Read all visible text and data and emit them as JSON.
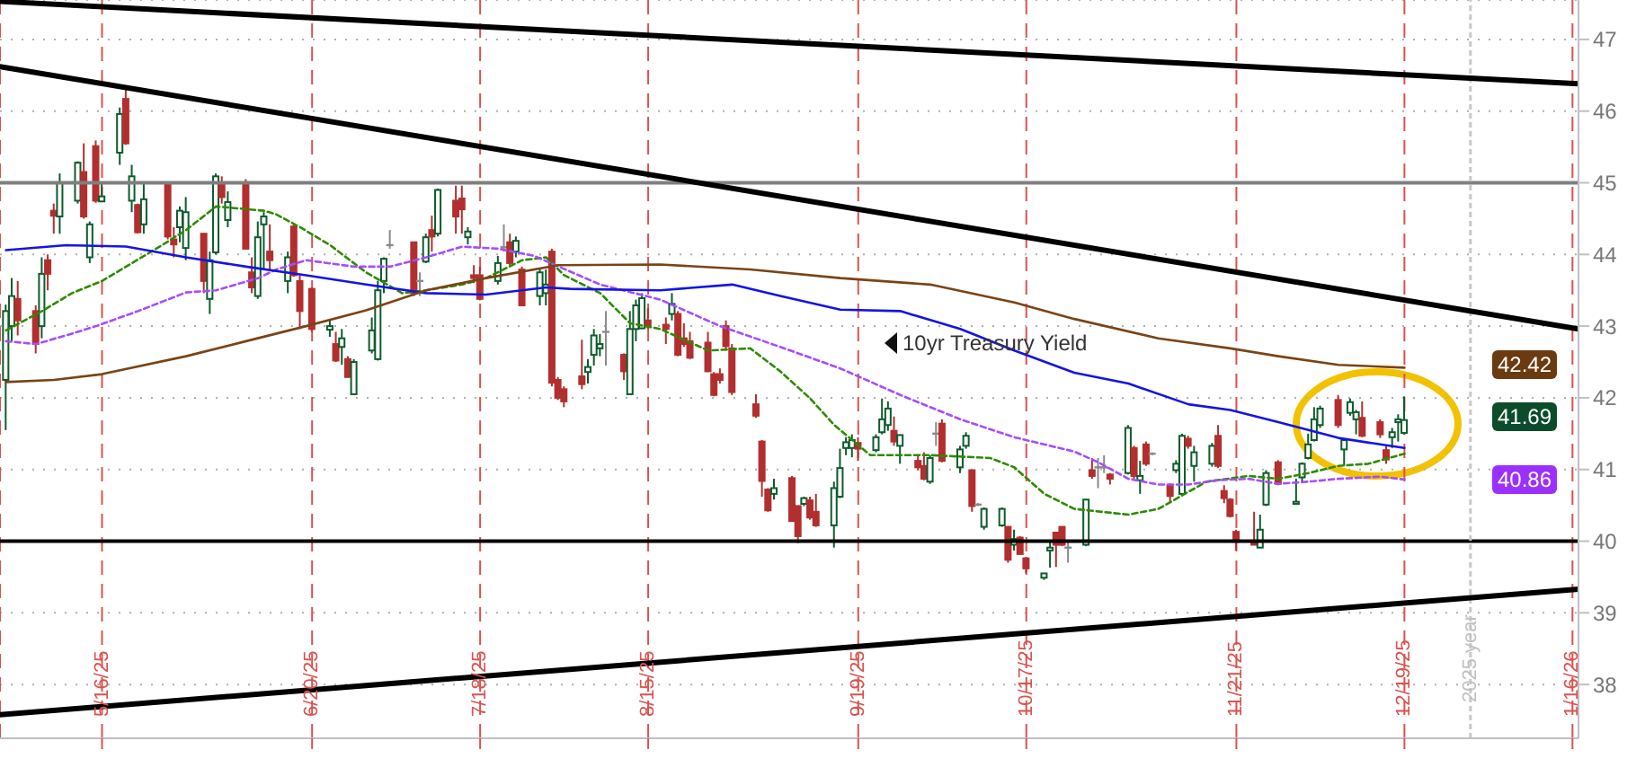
{
  "chart_data": {
    "type": "candlestick",
    "x": [
      "2025-04-30",
      "2025-05-01",
      "2025-05-02",
      "2025-05-05",
      "2025-05-06",
      "2025-05-07",
      "2025-05-08",
      "2025-05-09",
      "2025-05-12",
      "2025-05-13",
      "2025-05-14",
      "2025-05-15",
      "2025-05-16",
      "2025-05-19",
      "2025-05-20",
      "2025-05-21",
      "2025-05-22",
      "2025-05-23",
      "2025-05-27",
      "2025-05-28",
      "2025-05-29",
      "2025-05-30",
      "2025-06-02",
      "2025-06-03",
      "2025-06-04",
      "2025-06-05",
      "2025-06-06",
      "2025-06-09",
      "2025-06-10",
      "2025-06-11",
      "2025-06-12",
      "2025-06-13",
      "2025-06-16",
      "2025-06-17",
      "2025-06-18",
      "2025-06-20",
      "2025-06-23",
      "2025-06-24",
      "2025-06-25",
      "2025-06-26",
      "2025-06-27",
      "2025-06-30",
      "2025-07-01",
      "2025-07-02",
      "2025-07-03",
      "2025-07-07",
      "2025-07-08",
      "2025-07-09",
      "2025-07-10",
      "2025-07-11",
      "2025-07-14",
      "2025-07-15",
      "2025-07-16",
      "2025-07-17",
      "2025-07-18",
      "2025-07-21",
      "2025-07-22",
      "2025-07-23",
      "2025-07-24",
      "2025-07-25",
      "2025-07-28",
      "2025-07-29",
      "2025-07-30",
      "2025-07-31",
      "2025-08-01",
      "2025-08-04",
      "2025-08-05",
      "2025-08-06",
      "2025-08-07",
      "2025-08-08",
      "2025-08-11",
      "2025-08-12",
      "2025-08-13",
      "2025-08-14",
      "2025-08-15",
      "2025-08-18",
      "2025-08-19",
      "2025-08-20",
      "2025-08-21",
      "2025-08-22",
      "2025-08-25",
      "2025-08-26",
      "2025-08-27",
      "2025-08-28",
      "2025-08-29",
      "2025-09-02",
      "2025-09-03",
      "2025-09-04",
      "2025-09-05",
      "2025-09-08",
      "2025-09-09",
      "2025-09-10",
      "2025-09-11",
      "2025-09-12",
      "2025-09-15",
      "2025-09-16",
      "2025-09-17",
      "2025-09-18",
      "2025-09-19",
      "2025-09-22",
      "2025-09-23",
      "2025-09-24",
      "2025-09-25",
      "2025-09-26",
      "2025-09-29",
      "2025-09-30",
      "2025-10-01",
      "2025-10-02",
      "2025-10-03",
      "2025-10-06",
      "2025-10-07",
      "2025-10-08",
      "2025-10-09",
      "2025-10-10",
      "2025-10-13",
      "2025-10-14",
      "2025-10-15",
      "2025-10-16",
      "2025-10-17",
      "2025-10-20",
      "2025-10-21",
      "2025-10-22",
      "2025-10-23",
      "2025-10-24",
      "2025-10-27",
      "2025-10-28",
      "2025-10-29",
      "2025-10-30",
      "2025-10-31",
      "2025-11-03",
      "2025-11-04",
      "2025-11-05",
      "2025-11-06",
      "2025-11-07",
      "2025-11-10",
      "2025-11-11",
      "2025-11-12",
      "2025-11-13",
      "2025-11-14",
      "2025-11-17",
      "2025-11-18",
      "2025-11-19",
      "2025-11-20",
      "2025-11-21",
      "2025-11-24",
      "2025-11-25",
      "2025-11-26",
      "2025-11-28",
      "2025-12-01",
      "2025-12-02",
      "2025-12-03",
      "2025-12-04",
      "2025-12-05",
      "2025-12-08",
      "2025-12-09",
      "2025-12-10",
      "2025-12-11",
      "2025-12-12",
      "2025-12-15",
      "2025-12-16",
      "2025-12-17",
      "2025-12-18",
      "2025-12-19"
    ],
    "ohlc": [
      [
        42.25,
        43.3,
        41.55,
        43.21
      ],
      [
        43.0,
        43.67,
        42.79,
        43.42
      ],
      [
        43.38,
        43.63,
        42.87,
        43.08
      ],
      [
        43.21,
        43.29,
        42.62,
        42.75
      ],
      [
        43.0,
        43.96,
        42.83,
        43.73
      ],
      [
        43.92,
        44.0,
        43.5,
        43.73
      ],
      [
        44.61,
        44.71,
        44.29,
        44.54
      ],
      [
        44.53,
        45.13,
        44.29,
        45.0
      ],
      [
        44.75,
        45.3,
        44.71,
        45.28
      ],
      [
        45.15,
        45.55,
        44.5,
        44.53
      ],
      [
        43.96,
        44.46,
        43.88,
        44.42
      ],
      [
        45.51,
        45.59,
        44.72,
        44.75
      ],
      [
        44.74,
        45.0,
        44.73,
        44.81
      ],
      [
        45.42,
        46.05,
        45.25,
        45.96
      ],
      [
        46.17,
        46.3,
        45.53,
        45.55
      ],
      [
        44.75,
        45.25,
        44.59,
        45.09
      ],
      [
        44.69,
        44.71,
        44.29,
        44.31
      ],
      [
        44.42,
        45.0,
        44.29,
        44.77
      ],
      [
        44.98,
        45.0,
        44.21,
        44.25
      ],
      [
        44.21,
        44.38,
        43.96,
        44.14
      ],
      [
        44.38,
        44.67,
        44.17,
        44.61
      ],
      [
        44.09,
        44.8,
        43.92,
        44.59
      ],
      [
        44.29,
        44.29,
        43.46,
        43.63
      ],
      [
        43.38,
        44.04,
        43.17,
        43.92
      ],
      [
        44.03,
        45.13,
        44.0,
        45.09
      ],
      [
        45.0,
        45.09,
        44.71,
        44.8
      ],
      [
        44.48,
        44.88,
        44.38,
        44.73
      ],
      [
        45.0,
        45.05,
        44.08,
        44.08
      ],
      [
        43.75,
        43.96,
        43.46,
        43.54
      ],
      [
        43.42,
        44.46,
        43.38,
        44.24
      ],
      [
        44.42,
        44.59,
        43.79,
        44.53
      ],
      [
        44.04,
        44.42,
        43.79,
        43.92
      ],
      [
        43.63,
        44.04,
        43.46,
        43.96
      ],
      [
        44.39,
        44.42,
        43.69,
        43.71
      ],
      [
        43.63,
        43.71,
        42.96,
        43.21
      ],
      [
        43.52,
        43.54,
        42.92,
        42.96
      ],
      [
        42.95,
        43.1,
        42.85,
        43.0
      ],
      [
        42.75,
        42.92,
        42.5,
        42.52
      ],
      [
        42.71,
        42.96,
        42.46,
        42.83
      ],
      [
        42.54,
        42.58,
        42.29,
        42.29
      ],
      [
        42.05,
        42.54,
        42.04,
        42.5
      ],
      [
        42.66,
        43.12,
        42.62,
        42.94
      ],
      [
        42.54,
        43.63,
        42.52,
        43.5
      ],
      [
        43.63,
        43.96,
        43.46,
        43.94
      ],
      [
        44.13,
        44.34,
        44.08,
        44.13
      ],
      [
        44.17,
        44.17,
        43.42,
        43.46
      ],
      [
        43.63,
        43.75,
        43.42,
        43.63
      ],
      [
        43.9,
        44.29,
        43.88,
        44.24
      ],
      [
        44.34,
        44.54,
        44.04,
        44.25
      ],
      [
        44.29,
        44.92,
        44.25,
        44.9
      ],
      [
        44.75,
        44.96,
        44.29,
        44.53
      ],
      [
        44.78,
        44.96,
        44.29,
        44.63
      ],
      [
        44.24,
        44.38,
        44.14,
        44.32
      ],
      [
        43.71,
        43.85,
        43.6,
        43.67
      ],
      [
        43.71,
        43.83,
        43.36,
        43.38
      ],
      [
        43.63,
        43.98,
        43.58,
        43.88
      ],
      [
        44.1,
        44.42,
        44.04,
        44.1
      ],
      [
        44.17,
        44.29,
        43.83,
        43.88
      ],
      [
        44.04,
        44.25,
        43.96,
        44.19
      ],
      [
        43.79,
        43.83,
        43.29,
        43.29
      ],
      [
        43.42,
        43.79,
        43.29,
        43.75
      ],
      [
        43.46,
        43.79,
        43.29,
        43.58
      ],
      [
        44.04,
        44.08,
        42.16,
        42.21
      ],
      [
        42.25,
        42.29,
        41.97,
        42.0
      ],
      [
        42.12,
        42.16,
        41.87,
        41.95
      ],
      [
        42.3,
        42.81,
        42.12,
        42.19
      ],
      [
        42.36,
        42.54,
        42.2,
        42.43
      ],
      [
        42.6,
        42.96,
        42.45,
        42.87
      ],
      [
        42.69,
        42.89,
        42.58,
        42.75
      ],
      [
        42.92,
        43.21,
        42.45,
        42.92
      ],
      [
        42.6,
        42.62,
        42.25,
        42.37
      ],
      [
        42.05,
        43.21,
        42.04,
        42.96
      ],
      [
        42.96,
        43.37,
        42.79,
        43.29
      ],
      [
        42.97,
        43.46,
        42.96,
        43.39
      ],
      [
        43.08,
        43.25,
        42.96,
        43.0
      ],
      [
        43.02,
        43.12,
        42.75,
        42.96
      ],
      [
        43.17,
        43.46,
        43.08,
        43.31
      ],
      [
        43.17,
        43.21,
        42.58,
        42.6
      ],
      [
        42.83,
        43.04,
        42.71,
        42.75
      ],
      [
        42.79,
        42.92,
        42.54,
        42.56
      ],
      [
        42.77,
        42.92,
        42.36,
        42.37
      ],
      [
        42.33,
        42.36,
        42.02,
        42.04
      ],
      [
        42.33,
        42.41,
        42.2,
        42.25
      ],
      [
        43.0,
        43.08,
        42.66,
        42.72
      ],
      [
        42.69,
        42.75,
        42.04,
        42.08
      ],
      [
        41.91,
        42.05,
        41.72,
        41.75
      ],
      [
        41.39,
        41.41,
        40.62,
        40.84
      ],
      [
        40.72,
        40.74,
        40.41,
        40.43
      ],
      [
        40.66,
        40.87,
        40.58,
        40.74
      ],
      [
        40.88,
        40.91,
        40.27,
        40.28
      ],
      [
        40.49,
        40.49,
        39.97,
        40.07
      ],
      [
        40.52,
        40.62,
        40.49,
        40.6
      ],
      [
        40.57,
        40.62,
        40.3,
        40.33
      ],
      [
        40.41,
        40.66,
        40.2,
        40.22
      ],
      [
        40.22,
        40.83,
        39.91,
        40.74
      ],
      [
        40.62,
        41.29,
        40.6,
        41.02
      ],
      [
        41.3,
        41.45,
        41.2,
        41.38
      ],
      [
        41.3,
        41.49,
        41.17,
        41.41
      ],
      [
        41.37,
        41.45,
        41.12,
        41.29
      ],
      [
        41.27,
        41.49,
        41.24,
        41.45
      ],
      [
        41.52,
        41.99,
        41.49,
        41.7
      ],
      [
        41.62,
        41.95,
        41.54,
        41.85
      ],
      [
        41.54,
        41.74,
        41.33,
        41.39
      ],
      [
        41.33,
        41.49,
        41.08,
        41.48
      ],
      [
        41.12,
        41.2,
        40.99,
        41.03
      ],
      [
        41.05,
        41.24,
        40.85,
        40.87
      ],
      [
        40.83,
        41.2,
        40.8,
        41.16
      ],
      [
        41.5,
        41.66,
        41.33,
        41.5
      ],
      [
        41.64,
        41.7,
        41.1,
        41.12
      ],
      [
        41.03,
        41.33,
        40.95,
        41.28
      ],
      [
        41.33,
        41.52,
        41.29,
        41.47
      ],
      [
        40.99,
        40.99,
        40.41,
        40.49
      ],
      [
        40.51,
        40.53,
        40.49,
        40.51
      ],
      [
        40.2,
        40.47,
        40.16,
        40.45
      ],
      [
        40.22,
        40.47,
        40.2,
        40.45
      ],
      [
        40.2,
        40.2,
        39.7,
        39.74
      ],
      [
        39.95,
        40.16,
        39.87,
        40.03
      ],
      [
        40.05,
        40.07,
        39.82,
        39.82
      ],
      [
        39.76,
        39.78,
        39.55,
        39.62
      ],
      [
        39.49,
        39.55,
        39.46,
        39.55
      ],
      [
        39.87,
        39.99,
        39.63,
        39.91
      ],
      [
        40.12,
        40.13,
        39.64,
        39.95
      ],
      [
        40.2,
        40.2,
        39.93,
        39.95
      ],
      [
        39.91,
        39.99,
        39.7,
        39.91
      ],
      [
        39.95,
        40.58,
        39.93,
        40.58
      ],
      [
        40.99,
        41.16,
        40.87,
        40.91
      ],
      [
        41.03,
        41.16,
        40.74,
        41.03
      ],
      [
        41.03,
        41.2,
        40.95,
        41.03
      ],
      [
        40.93,
        40.95,
        40.79,
        40.87
      ],
      [
        40.95,
        41.62,
        40.93,
        41.58
      ],
      [
        41.3,
        41.33,
        40.87,
        40.91
      ],
      [
        40.85,
        41.12,
        40.66,
        40.91
      ],
      [
        41.35,
        41.39,
        41.05,
        41.08
      ],
      [
        41.22,
        41.24,
        41.2,
        41.22
      ],
      [
        40.78,
        40.81,
        40.53,
        40.63
      ],
      [
        40.99,
        41.13,
        40.95,
        41.08
      ],
      [
        40.66,
        41.5,
        40.63,
        41.47
      ],
      [
        41.43,
        41.47,
        41.29,
        41.33
      ],
      [
        41.05,
        41.33,
        40.83,
        41.24
      ],
      [
        41.08,
        41.37,
        41.04,
        41.33
      ],
      [
        41.47,
        41.62,
        41.02,
        41.05
      ],
      [
        40.7,
        40.78,
        40.53,
        40.6
      ],
      [
        40.58,
        40.6,
        40.33,
        40.35
      ],
      [
        40.13,
        40.16,
        39.87,
        39.99
      ],
      [
        39.99,
        40.41,
        39.95,
        39.95
      ],
      [
        39.91,
        40.37,
        39.91,
        40.16
      ],
      [
        40.51,
        40.99,
        40.49,
        40.95
      ],
      [
        41.1,
        41.13,
        40.78,
        40.8
      ],
      [
        40.52,
        40.87,
        40.52,
        40.55
      ],
      [
        40.89,
        41.1,
        40.83,
        41.08
      ],
      [
        41.16,
        41.5,
        41.14,
        41.35
      ],
      [
        41.41,
        41.87,
        41.39,
        41.7
      ],
      [
        41.62,
        41.89,
        41.58,
        41.85
      ],
      [
        41.97,
        42.04,
        41.58,
        41.62
      ],
      [
        41.28,
        41.43,
        41.05,
        41.41
      ],
      [
        41.79,
        41.99,
        41.75,
        41.94
      ],
      [
        41.7,
        41.83,
        41.49,
        41.8
      ],
      [
        41.72,
        41.95,
        41.45,
        41.47
      ],
      [
        41.66,
        41.7,
        41.44,
        41.49
      ],
      [
        41.27,
        41.33,
        41.08,
        41.14
      ],
      [
        41.45,
        41.58,
        41.3,
        41.52
      ],
      [
        41.66,
        41.77,
        41.39,
        41.7
      ],
      [
        41.51,
        42.02,
        41.49,
        41.69
      ]
    ],
    "series": [
      {
        "type": "line",
        "color": "#2e8b00",
        "line_style": "dashed",
        "x": [
          "2025-04-30",
          "2025-05-06",
          "2025-05-11",
          "2025-05-16",
          "2025-05-20",
          "2025-05-26",
          "2025-05-30",
          "2025-06-04",
          "2025-06-12",
          "2025-06-14",
          "2025-06-18",
          "2025-06-23",
          "2025-06-29",
          "2025-07-05",
          "2025-07-09",
          "2025-07-15",
          "2025-07-19",
          "2025-07-25",
          "2025-07-29",
          "2025-08-01",
          "2025-08-07",
          "2025-08-12",
          "2025-08-17",
          "2025-08-25",
          "2025-09-01",
          "2025-09-06",
          "2025-09-11",
          "2025-09-15",
          "2025-09-21",
          "2025-10-01",
          "2025-10-11",
          "2025-10-15",
          "2025-10-20",
          "2025-10-25",
          "2025-11-03",
          "2025-11-08",
          "2025-11-16",
          "2025-11-23",
          "2025-11-28",
          "2025-12-03",
          "2025-12-08",
          "2025-12-13",
          "2025-12-19"
        ],
        "values": [
          42.94,
          43.21,
          43.46,
          43.63,
          43.83,
          44.13,
          44.34,
          44.67,
          44.61,
          44.56,
          44.38,
          44.13,
          43.75,
          43.46,
          43.5,
          43.58,
          43.67,
          43.92,
          43.96,
          43.71,
          43.46,
          43.04,
          42.96,
          42.66,
          42.69,
          42.37,
          41.99,
          41.62,
          41.2,
          41.2,
          41.16,
          41.03,
          40.66,
          40.45,
          40.37,
          40.45,
          40.83,
          40.91,
          40.87,
          40.95,
          41.05,
          41.08,
          41.22
        ]
      },
      {
        "type": "line",
        "color": "#a64dff",
        "line_style": "dashed",
        "x": [
          "2025-04-30",
          "2025-05-05",
          "2025-05-10",
          "2025-05-15",
          "2025-05-22",
          "2025-05-30",
          "2025-06-04",
          "2025-06-11",
          "2025-06-14",
          "2025-06-19",
          "2025-06-27",
          "2025-07-03",
          "2025-07-09",
          "2025-07-15",
          "2025-07-21",
          "2025-07-27",
          "2025-08-07",
          "2025-08-17",
          "2025-08-27",
          "2025-09-06",
          "2025-09-16",
          "2025-09-26",
          "2025-10-06",
          "2025-10-15",
          "2025-10-25",
          "2025-10-29",
          "2025-11-03",
          "2025-11-08",
          "2025-11-13",
          "2025-11-18",
          "2025-11-23",
          "2025-11-28",
          "2025-12-03",
          "2025-12-08",
          "2025-12-15",
          "2025-12-19"
        ],
        "values": [
          42.79,
          42.75,
          42.87,
          43.0,
          43.21,
          43.47,
          43.5,
          43.67,
          43.79,
          43.92,
          43.83,
          43.83,
          43.96,
          44.11,
          44.08,
          43.98,
          43.58,
          43.37,
          43.0,
          42.71,
          42.41,
          42.04,
          41.7,
          41.45,
          41.25,
          41.1,
          40.87,
          40.79,
          40.79,
          40.85,
          40.87,
          40.8,
          40.83,
          40.87,
          40.9,
          40.86
        ]
      },
      {
        "type": "line",
        "color": "#1414e6",
        "line_style": "solid",
        "x": [
          "2025-04-30",
          "2025-05-10",
          "2025-05-20",
          "2025-05-30",
          "2025-06-09",
          "2025-06-19",
          "2025-06-29",
          "2025-07-09",
          "2025-07-19",
          "2025-07-29",
          "2025-08-02",
          "2025-08-17",
          "2025-08-29",
          "2025-09-06",
          "2025-09-16",
          "2025-09-26",
          "2025-10-06",
          "2025-10-15",
          "2025-10-25",
          "2025-11-03",
          "2025-11-13",
          "2025-11-20",
          "2025-11-28",
          "2025-12-08",
          "2025-12-15",
          "2025-12-19"
        ],
        "values": [
          44.06,
          44.13,
          44.11,
          43.96,
          43.83,
          43.71,
          43.58,
          43.46,
          43.44,
          43.54,
          43.52,
          43.5,
          43.58,
          43.42,
          43.23,
          43.21,
          42.96,
          42.66,
          42.35,
          42.2,
          41.91,
          41.83,
          41.66,
          41.44,
          41.35,
          41.3
        ]
      },
      {
        "type": "line",
        "color": "#7a4416",
        "line_style": "solid",
        "x": [
          "2025-04-30",
          "2025-05-08",
          "2025-05-16",
          "2025-05-30",
          "2025-06-09",
          "2025-06-19",
          "2025-06-29",
          "2025-07-09",
          "2025-07-19",
          "2025-07-31",
          "2025-08-17",
          "2025-09-01",
          "2025-09-16",
          "2025-10-01",
          "2025-10-15",
          "2025-10-25",
          "2025-11-08",
          "2025-11-20",
          "2025-11-28",
          "2025-12-08",
          "2025-12-19"
        ],
        "values": [
          42.22,
          42.25,
          42.33,
          42.58,
          42.79,
          43.0,
          43.22,
          43.5,
          43.67,
          43.85,
          43.86,
          43.79,
          43.67,
          43.58,
          43.33,
          43.1,
          42.83,
          42.69,
          42.58,
          42.46,
          42.42
        ]
      },
      {
        "type": "line",
        "color": "#000000",
        "line_style": "solid",
        "x": [
          "2025-04-29",
          "2026-01-17"
        ],
        "values": [
          47.53,
          46.38
        ]
      },
      {
        "type": "line",
        "color": "#000000",
        "line_style": "solid",
        "x": [
          "2025-04-29",
          "2026-01-17"
        ],
        "values": [
          46.62,
          42.96
        ]
      },
      {
        "type": "line",
        "color": "#000000",
        "line_style": "solid",
        "x": [
          "2025-04-29",
          "2026-01-17"
        ],
        "values": [
          37.58,
          39.33
        ]
      }
    ],
    "ref_lines": [
      {
        "axis": "y",
        "value": 45,
        "color": "#7f7f7f",
        "line_style": "solid"
      },
      {
        "axis": "y",
        "value": 40,
        "color": "#000000",
        "line_style": "solid"
      },
      {
        "axis": "x",
        "value": "2025-12-30",
        "label": "2025 year",
        "color": "#c8c8c8",
        "line_style": "dashed"
      }
    ],
    "annotations": [
      "10yr Treasury Yield",
      "42.42",
      "41.69",
      "40.86"
    ],
    "xlim": [
      "2025-04-29",
      "2026-01-17"
    ],
    "xticks": [
      {
        "value": "2025-05-16",
        "label": "5/16/25"
      },
      {
        "value": "2025-06-20",
        "label": "6/20/25"
      },
      {
        "value": "2025-07-18",
        "label": "7/18/25"
      },
      {
        "value": "2025-08-15",
        "label": "8/15/25"
      },
      {
        "value": "2025-09-19",
        "label": "9/19/25"
      },
      {
        "value": "2025-10-17",
        "label": "10/17/25"
      },
      {
        "value": "2025-11-21",
        "label": "11/21/25"
      },
      {
        "value": "2025-12-19",
        "label": "12/19/25"
      },
      {
        "value": "2026-01-16",
        "label": "1/16/26"
      }
    ],
    "ylim": [
      37.25,
      47.55
    ],
    "yticks": [
      38,
      39,
      40,
      41,
      42,
      43,
      44,
      45,
      46,
      47
    ],
    "grid": true
  }
}
